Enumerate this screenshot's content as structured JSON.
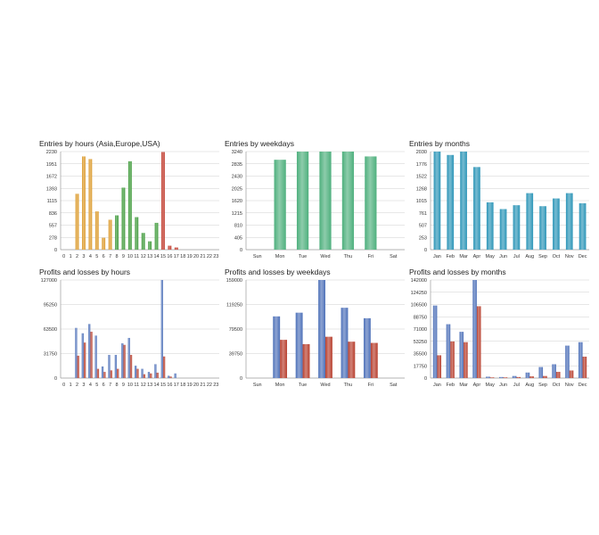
{
  "colors": {
    "orange": "#dc9a2a",
    "green": "#3e9a3a",
    "red": "#c0392b",
    "mint": "#4fb07e",
    "teal": "#2e96b8",
    "blue": "#4f72b9",
    "brick": "#b8402f"
  },
  "chart_data": [
    {
      "type": "bar",
      "title": "Entries by hours (Asia,Europe,USA)",
      "categories": [
        "0",
        "1",
        "2",
        "3",
        "4",
        "5",
        "6",
        "7",
        "8",
        "9",
        "10",
        "11",
        "12",
        "13",
        "14",
        "15",
        "16",
        "17",
        "18",
        "19",
        "20",
        "21",
        "22",
        "23"
      ],
      "yticks": [
        "0",
        "278",
        "557",
        "836",
        "1115",
        "1393",
        "1672",
        "1951",
        "2230"
      ],
      "ylim": [
        0,
        2230
      ],
      "series": [
        {
          "values": [
            0,
            0,
            1270,
            2120,
            2060,
            870,
            270,
            680,
            780,
            1410,
            2010,
            740,
            380,
            190,
            610,
            2220,
            90,
            50,
            0,
            0,
            0,
            0,
            0,
            0
          ]
        }
      ],
      "bar_colors": [
        "orange",
        "orange",
        "orange",
        "orange",
        "orange",
        "orange",
        "orange",
        "orange",
        "green",
        "green",
        "green",
        "green",
        "green",
        "green",
        "green",
        "red",
        "red",
        "red",
        "red",
        "red",
        "red",
        "red",
        "red",
        "red"
      ]
    },
    {
      "type": "bar",
      "title": "Entries by weekdays",
      "categories": [
        "Sun",
        "Mon",
        "Tue",
        "Wed",
        "Thu",
        "Fri",
        "Sat"
      ],
      "yticks": [
        "0",
        "405",
        "810",
        "1215",
        "1620",
        "2025",
        "2430",
        "2835",
        "3240"
      ],
      "ylim": [
        0,
        3240
      ],
      "series": [
        {
          "values": [
            0,
            2970,
            3240,
            3240,
            3240,
            3080,
            0
          ]
        }
      ],
      "color": "mint"
    },
    {
      "type": "bar",
      "title": "Entries by months",
      "categories": [
        "Jan",
        "Feb",
        "Mar",
        "Apr",
        "May",
        "Jun",
        "Jul",
        "Aug",
        "Sep",
        "Oct",
        "Nov",
        "Dec"
      ],
      "yticks": [
        "0",
        "253",
        "507",
        "761",
        "1015",
        "1268",
        "1522",
        "1776",
        "2030"
      ],
      "ylim": [
        0,
        2030
      ],
      "series": [
        {
          "values": [
            2030,
            1960,
            2030,
            1710,
            980,
            840,
            920,
            1170,
            900,
            1060,
            1170,
            960
          ]
        }
      ],
      "color": "teal"
    },
    {
      "type": "bar",
      "title": "Profits and losses by hours",
      "categories": [
        "0",
        "1",
        "2",
        "3",
        "4",
        "5",
        "6",
        "7",
        "8",
        "9",
        "10",
        "11",
        "12",
        "13",
        "14",
        "15",
        "16",
        "17",
        "18",
        "19",
        "20",
        "21",
        "22",
        "23"
      ],
      "yticks": [
        "0",
        "31750",
        "63500",
        "95250",
        "127000"
      ],
      "ylim": [
        0,
        127000
      ],
      "series": [
        {
          "values": [
            0,
            0,
            65000,
            58000,
            70000,
            55000,
            15000,
            30000,
            30000,
            45000,
            52000,
            16000,
            12000,
            8000,
            18000,
            127000,
            3000,
            6000,
            0,
            0,
            0,
            0,
            0,
            0
          ],
          "color": "blue"
        },
        {
          "values": [
            0,
            0,
            29000,
            46000,
            60000,
            12000,
            8000,
            10000,
            12000,
            43000,
            30000,
            12000,
            5000,
            6000,
            7000,
            28000,
            2000,
            0,
            0,
            0,
            0,
            0,
            0,
            0
          ],
          "color": "brick"
        }
      ]
    },
    {
      "type": "bar",
      "title": "Profits and losses by weekdays",
      "categories": [
        "Sun",
        "Mon",
        "Tue",
        "Wed",
        "Thu",
        "Fri",
        "Sat"
      ],
      "yticks": [
        "0",
        "39750",
        "79500",
        "119250",
        "159000"
      ],
      "ylim": [
        0,
        159000
      ],
      "series": [
        {
          "values": [
            0,
            100000,
            106000,
            159000,
            114000,
            97000,
            0
          ],
          "color": "blue"
        },
        {
          "values": [
            0,
            62000,
            55000,
            67000,
            59000,
            57000,
            0
          ],
          "color": "brick"
        }
      ]
    },
    {
      "type": "bar",
      "title": "Profits and losses by months",
      "categories": [
        "Jan",
        "Feb",
        "Mar",
        "Apr",
        "May",
        "Jun",
        "Jul",
        "Aug",
        "Sep",
        "Oct",
        "Nov",
        "Dec"
      ],
      "yticks": [
        "0",
        "17750",
        "35500",
        "53250",
        "71000",
        "88750",
        "106500",
        "124250",
        "142000"
      ],
      "ylim": [
        0,
        142000
      ],
      "series": [
        {
          "values": [
            105000,
            78000,
            67000,
            142000,
            2000,
            1500,
            3000,
            8000,
            16000,
            20000,
            47000,
            52000
          ],
          "color": "blue"
        },
        {
          "values": [
            33000,
            53000,
            52000,
            104000,
            1000,
            1000,
            1500,
            2500,
            3000,
            9000,
            11000,
            31000
          ],
          "color": "brick"
        }
      ]
    }
  ]
}
